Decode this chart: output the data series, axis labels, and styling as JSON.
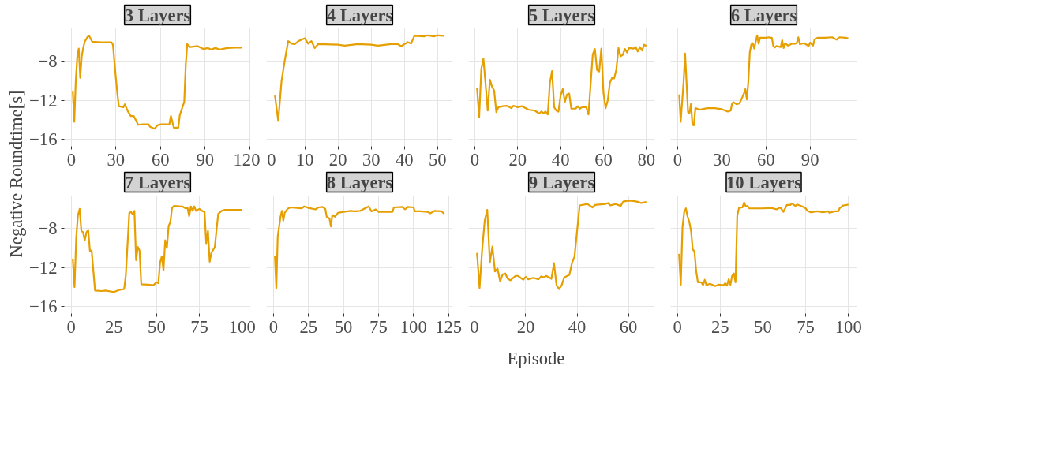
{
  "chart_data": [
    {
      "type": "line",
      "title": "3 Layers",
      "ylabel": "Negative Roundtime[s]",
      "color": "#e69f00",
      "grid": true,
      "xlim": [
        -4.7,
        120.7
      ],
      "ylim": [
        -16.7,
        -4.6
      ],
      "xticks": [
        0,
        30,
        60,
        90,
        120
      ],
      "yticks": [
        -16,
        -12,
        -8
      ],
      "x": [
        1,
        2,
        3,
        4,
        5,
        6,
        7,
        8,
        9,
        11,
        12,
        14,
        20,
        27,
        28,
        30,
        31,
        32,
        35,
        36,
        38,
        40,
        42,
        45,
        48,
        52,
        53,
        56,
        58,
        60,
        66,
        67,
        69,
        72,
        73,
        76,
        77,
        78,
        80,
        85,
        89,
        92,
        94,
        97,
        100,
        105,
        110,
        115
      ],
      "values": [
        -11.1,
        -14.2,
        -10.0,
        -7.6,
        -6.7,
        -9.7,
        -7.5,
        -6.65,
        -6.0,
        -5.5,
        -5.4,
        -6.0,
        -6.05,
        -6.05,
        -6.3,
        -9.75,
        -11.35,
        -12.6,
        -12.7,
        -12.4,
        -13.1,
        -13.6,
        -13.6,
        -14.5,
        -14.45,
        -14.45,
        -14.7,
        -14.9,
        -14.55,
        -14.45,
        -14.45,
        -13.6,
        -14.8,
        -14.8,
        -13.5,
        -12.15,
        -8.4,
        -6.25,
        -6.55,
        -6.45,
        -6.75,
        -6.65,
        -6.8,
        -6.65,
        -6.8,
        -6.65,
        -6.6,
        -6.6
      ]
    },
    {
      "type": "line",
      "title": "4 Layers",
      "color": "#e69f00",
      "grid": true,
      "tick_labels": "x",
      "xlim": [
        -1.55,
        54.55
      ],
      "ylim": [
        -16.7,
        -4.6
      ],
      "xticks": [
        0,
        10,
        20,
        30,
        40,
        50
      ],
      "yticks": [
        -16,
        -12,
        -8
      ],
      "x": [
        1,
        2,
        3,
        4,
        5,
        6,
        7,
        8,
        10,
        11,
        12,
        13,
        14,
        20,
        22,
        26,
        30,
        32,
        36,
        38,
        39,
        41,
        42,
        43,
        46,
        47,
        49,
        50,
        52
      ],
      "values": [
        -11.5,
        -14.1,
        -10.0,
        -7.85,
        -5.95,
        -6.2,
        -6.25,
        -5.95,
        -5.65,
        -6.2,
        -5.95,
        -6.65,
        -6.25,
        -6.3,
        -6.4,
        -6.25,
        -6.3,
        -6.4,
        -6.25,
        -6.25,
        -6.45,
        -6.05,
        -6.2,
        -5.4,
        -5.45,
        -5.35,
        -5.45,
        -5.35,
        -5.4
      ]
    },
    {
      "type": "line",
      "title": "5 Layers",
      "color": "#e69f00",
      "grid": true,
      "tick_labels": "x",
      "xlim": [
        -2.95,
        83.95
      ],
      "ylim": [
        -16.7,
        -4.6
      ],
      "xticks": [
        0,
        20,
        40,
        60,
        80
      ],
      "yticks": [
        -16,
        -12,
        -8
      ],
      "x": [
        1,
        2,
        3,
        4,
        5,
        6,
        7,
        8,
        9,
        10,
        11,
        13,
        15,
        17,
        18,
        20,
        22,
        25,
        28,
        30,
        31,
        32,
        33,
        34,
        35,
        36,
        37,
        38,
        39,
        40,
        41,
        42,
        43,
        44,
        45,
        47,
        48,
        49,
        50,
        52,
        53,
        55,
        56,
        57,
        58,
        59,
        60,
        61,
        62,
        63,
        64,
        65,
        66,
        67,
        68,
        69,
        70,
        71,
        72,
        74,
        75,
        76,
        77,
        78,
        79,
        80
      ],
      "values": [
        -10.7,
        -13.75,
        -8.8,
        -7.75,
        -10.35,
        -13.05,
        -9.9,
        -10.6,
        -11.0,
        -13.2,
        -12.7,
        -12.6,
        -12.55,
        -12.8,
        -12.55,
        -12.7,
        -12.6,
        -12.95,
        -13.05,
        -13.35,
        -13.15,
        -13.3,
        -13.15,
        -13.45,
        -10.2,
        -9.0,
        -12.7,
        -13.05,
        -13.15,
        -11.5,
        -10.85,
        -12.15,
        -11.4,
        -11.3,
        -12.85,
        -12.85,
        -12.6,
        -12.85,
        -12.7,
        -12.7,
        -13.45,
        -7.3,
        -6.75,
        -8.9,
        -9.05,
        -6.7,
        -11.25,
        -12.8,
        -12.0,
        -10.2,
        -9.7,
        -9.75,
        -8.85,
        -6.65,
        -7.5,
        -7.35,
        -6.75,
        -7.1,
        -6.65,
        -6.7,
        -6.55,
        -7.0,
        -6.55,
        -6.9,
        -6.3,
        -6.45
      ]
    },
    {
      "type": "line",
      "title": "6 Layers",
      "color": "#e69f00",
      "grid": true,
      "tick_labels": "x",
      "xlim": [
        -4.85,
        121.85
      ],
      "ylim": [
        -16.7,
        -4.6
      ],
      "xticks": [
        0,
        30,
        60,
        90
      ],
      "yticks": [
        -16,
        -12,
        -8
      ],
      "x": [
        1,
        2,
        4,
        5,
        7,
        8,
        9,
        10,
        11,
        12,
        15,
        20,
        25,
        30,
        34,
        36,
        37,
        38,
        40,
        42,
        44,
        45,
        46,
        47,
        48,
        49,
        50,
        51,
        52,
        54,
        55,
        56,
        60,
        62,
        63,
        64,
        65,
        66,
        67,
        70,
        71,
        72,
        73,
        75,
        78,
        80,
        81,
        82,
        83,
        86,
        89,
        90,
        92,
        93,
        95,
        100,
        105,
        108,
        110,
        114,
        116
      ],
      "values": [
        -11.4,
        -14.2,
        -10.1,
        -7.2,
        -13.2,
        -13.3,
        -12.35,
        -14.5,
        -14.55,
        -12.8,
        -12.95,
        -12.8,
        -12.8,
        -12.9,
        -13.15,
        -13.05,
        -12.3,
        -12.2,
        -12.4,
        -12.3,
        -11.65,
        -11.3,
        -10.85,
        -11.9,
        -10.1,
        -7.1,
        -6.3,
        -6.15,
        -6.7,
        -5.35,
        -6.2,
        -5.6,
        -5.6,
        -5.55,
        -5.6,
        -5.6,
        -6.45,
        -6.6,
        -6.45,
        -6.55,
        -5.85,
        -6.65,
        -6.15,
        -6.4,
        -6.2,
        -6.2,
        -6.1,
        -5.55,
        -6.25,
        -6.15,
        -6.45,
        -6.1,
        -6.4,
        -5.8,
        -5.6,
        -5.6,
        -5.55,
        -5.8,
        -5.55,
        -5.6,
        -5.65
      ]
    },
    {
      "type": "line",
      "title": "7 Layers",
      "color": "#e69f00",
      "grid": true,
      "xlim": [
        -3.95,
        104.95
      ],
      "ylim": [
        -16.7,
        -4.6
      ],
      "xticks": [
        0,
        25,
        50,
        75,
        100
      ],
      "yticks": [
        -16,
        -12,
        -8
      ],
      "x": [
        1,
        2,
        3,
        4,
        5,
        6,
        7,
        8,
        9,
        10,
        11,
        12,
        14,
        18,
        20,
        25,
        28,
        31,
        32,
        34,
        35,
        36,
        37,
        38,
        39,
        40,
        41,
        45,
        48,
        50,
        51,
        52,
        53,
        54,
        55,
        56,
        57,
        58,
        59,
        60,
        65,
        67,
        68,
        69,
        70,
        71,
        72,
        73,
        75,
        77,
        78,
        79,
        80,
        81,
        82,
        84,
        85,
        86,
        88,
        90,
        95,
        100
      ],
      "values": [
        -11.15,
        -14.0,
        -8.95,
        -6.65,
        -6.0,
        -8.25,
        -8.4,
        -9.2,
        -8.4,
        -8.15,
        -10.3,
        -10.25,
        -14.35,
        -14.4,
        -14.35,
        -14.5,
        -14.3,
        -14.2,
        -12.75,
        -6.45,
        -6.3,
        -6.55,
        -6.2,
        -11.25,
        -9.9,
        -10.25,
        -13.7,
        -13.75,
        -13.8,
        -13.5,
        -13.6,
        -11.5,
        -10.85,
        -12.3,
        -9.2,
        -10.0,
        -7.75,
        -7.35,
        -5.9,
        -5.7,
        -5.75,
        -5.95,
        -5.85,
        -6.75,
        -5.75,
        -6.2,
        -5.75,
        -6.2,
        -6.0,
        -6.25,
        -6.3,
        -9.6,
        -8.25,
        -11.4,
        -10.5,
        -9.9,
        -8.15,
        -6.5,
        -6.2,
        -6.1,
        -6.1,
        -6.1
      ]
    },
    {
      "type": "line",
      "title": "8 Layers",
      "xlabel": "Episode",
      "color": "#e69f00",
      "grid": true,
      "tick_labels": "x",
      "xlim": [
        -5.05,
        128.05
      ],
      "ylim": [
        -16.7,
        -4.6
      ],
      "xticks": [
        0,
        25,
        50,
        75,
        100,
        125
      ],
      "yticks": [
        -16,
        -12,
        -8
      ],
      "x": [
        1,
        2,
        3,
        5,
        6,
        7,
        8,
        10,
        12,
        20,
        22,
        25,
        30,
        32,
        35,
        37,
        38,
        40,
        41,
        42,
        44,
        46,
        50,
        55,
        58,
        62,
        68,
        70,
        73,
        75,
        85,
        86,
        92,
        94,
        96,
        100,
        101,
        105,
        110,
        112,
        115,
        120,
        122
      ],
      "values": [
        -10.85,
        -14.15,
        -8.8,
        -6.8,
        -6.2,
        -7.2,
        -6.4,
        -6.0,
        -5.85,
        -5.95,
        -5.75,
        -5.9,
        -6.05,
        -5.85,
        -5.8,
        -6.0,
        -6.8,
        -7.0,
        -7.8,
        -6.65,
        -6.8,
        -6.4,
        -6.3,
        -6.2,
        -6.25,
        -6.2,
        -5.75,
        -6.25,
        -6.05,
        -6.3,
        -6.3,
        -5.85,
        -5.8,
        -6.05,
        -5.8,
        -5.85,
        -6.25,
        -6.25,
        -6.3,
        -6.45,
        -6.2,
        -6.25,
        -6.5
      ]
    },
    {
      "type": "line",
      "title": "9 Layers",
      "color": "#e69f00",
      "grid": true,
      "tick_labels": "x",
      "xlim": [
        -2.3,
        70.3
      ],
      "ylim": [
        -16.7,
        -4.6
      ],
      "xticks": [
        0,
        20,
        40,
        60
      ],
      "yticks": [
        -16,
        -12,
        -8
      ],
      "x": [
        1,
        2,
        3,
        4,
        5,
        6,
        7,
        8,
        9,
        10,
        11,
        12,
        13,
        14,
        16,
        17,
        19,
        20,
        21,
        23,
        25,
        26,
        27,
        28,
        30,
        31,
        32,
        33,
        34,
        35,
        37,
        38,
        39,
        41,
        44,
        46,
        47,
        51,
        52,
        53,
        55,
        57,
        58,
        60,
        62,
        64,
        65,
        67
      ],
      "values": [
        -10.5,
        -14.1,
        -10.2,
        -7.2,
        -6.1,
        -11.5,
        -9.85,
        -12.4,
        -12.1,
        -13.4,
        -12.7,
        -12.6,
        -13.15,
        -13.3,
        -12.85,
        -12.85,
        -13.25,
        -12.95,
        -13.2,
        -13.05,
        -13.2,
        -12.9,
        -13.0,
        -12.85,
        -13.15,
        -11.55,
        -13.8,
        -14.2,
        -13.8,
        -13.0,
        -12.75,
        -11.55,
        -10.9,
        -5.65,
        -5.5,
        -5.85,
        -5.6,
        -5.5,
        -5.4,
        -5.65,
        -5.5,
        -5.7,
        -5.25,
        -5.15,
        -5.2,
        -5.3,
        -5.4,
        -5.3
      ]
    },
    {
      "type": "line",
      "title": "10 Layers",
      "color": "#e69f00",
      "grid": true,
      "tick_labels": "x",
      "xlim": [
        -3.95,
        104.95
      ],
      "ylim": [
        -16.7,
        -4.6
      ],
      "xticks": [
        0,
        25,
        50,
        75,
        100
      ],
      "yticks": [
        -16,
        -12,
        -8
      ],
      "x": [
        1,
        2,
        3,
        4,
        5,
        6,
        7,
        8,
        9,
        10,
        11,
        12,
        14,
        15,
        16,
        17,
        19,
        21,
        22,
        24,
        27,
        28,
        29,
        30,
        31,
        32,
        33,
        34,
        35,
        36,
        38,
        39,
        40,
        41,
        42,
        45,
        50,
        55,
        58,
        60,
        61,
        62,
        64,
        66,
        67,
        69,
        70,
        73,
        75,
        76,
        78,
        82,
        85,
        88,
        89,
        92,
        94,
        95,
        97,
        99,
        100
      ],
      "values": [
        -10.6,
        -13.75,
        -7.85,
        -6.35,
        -5.95,
        -6.8,
        -7.35,
        -8.25,
        -10.15,
        -10.35,
        -12.35,
        -13.5,
        -13.5,
        -13.8,
        -13.25,
        -13.8,
        -13.65,
        -13.8,
        -13.9,
        -13.75,
        -13.8,
        -13.6,
        -13.85,
        -13.2,
        -13.75,
        -12.85,
        -12.6,
        -13.5,
        -6.7,
        -5.9,
        -5.85,
        -5.35,
        -5.75,
        -5.7,
        -5.95,
        -5.95,
        -5.95,
        -5.9,
        -6.05,
        -5.85,
        -6.05,
        -6.3,
        -5.6,
        -5.6,
        -5.45,
        -5.7,
        -5.55,
        -5.75,
        -5.95,
        -6.2,
        -6.35,
        -6.25,
        -6.35,
        -6.25,
        -6.4,
        -6.25,
        -6.25,
        -5.9,
        -5.65,
        -5.6,
        -5.55
      ]
    }
  ]
}
